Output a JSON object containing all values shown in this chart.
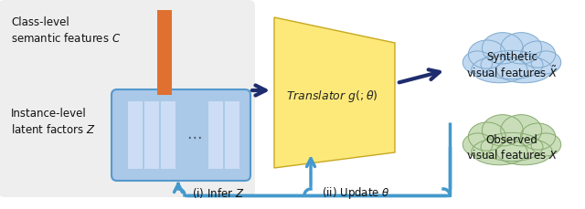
{
  "fig_w": 6.4,
  "fig_h": 2.3,
  "bg_box_color": "#eeeeee",
  "bg_box_edge": "#cccccc",
  "orange_color": "#e07030",
  "latent_box_fill": "#aac8e8",
  "latent_box_edge": "#5599cc",
  "latent_col_fill": "#ccddf5",
  "translator_fill": "#fce97a",
  "translator_edge": "#c8a820",
  "arrow_dark": "#1e2d6e",
  "arrow_light": "#4499cc",
  "cloud_synth_fill": "#c0d8f0",
  "cloud_synth_edge": "#80aace",
  "cloud_obs_fill": "#c8ddb8",
  "cloud_obs_edge": "#88aa70",
  "text_main": "#111111",
  "text_class": "Class-level\nsemantic features $\\mathit{C}$",
  "text_instance": "Instance-level\nlatent factors $\\mathit{Z}$",
  "text_translator": "Translator $g(;\\theta)$",
  "text_synth": "Synthetic\nvisual features $\\tilde{X}$",
  "text_obs": "Observed\nvisual features $X$",
  "text_infer": "(i) Infer $\\mathit{Z}$",
  "text_update": "(ii) Update $\\theta$"
}
